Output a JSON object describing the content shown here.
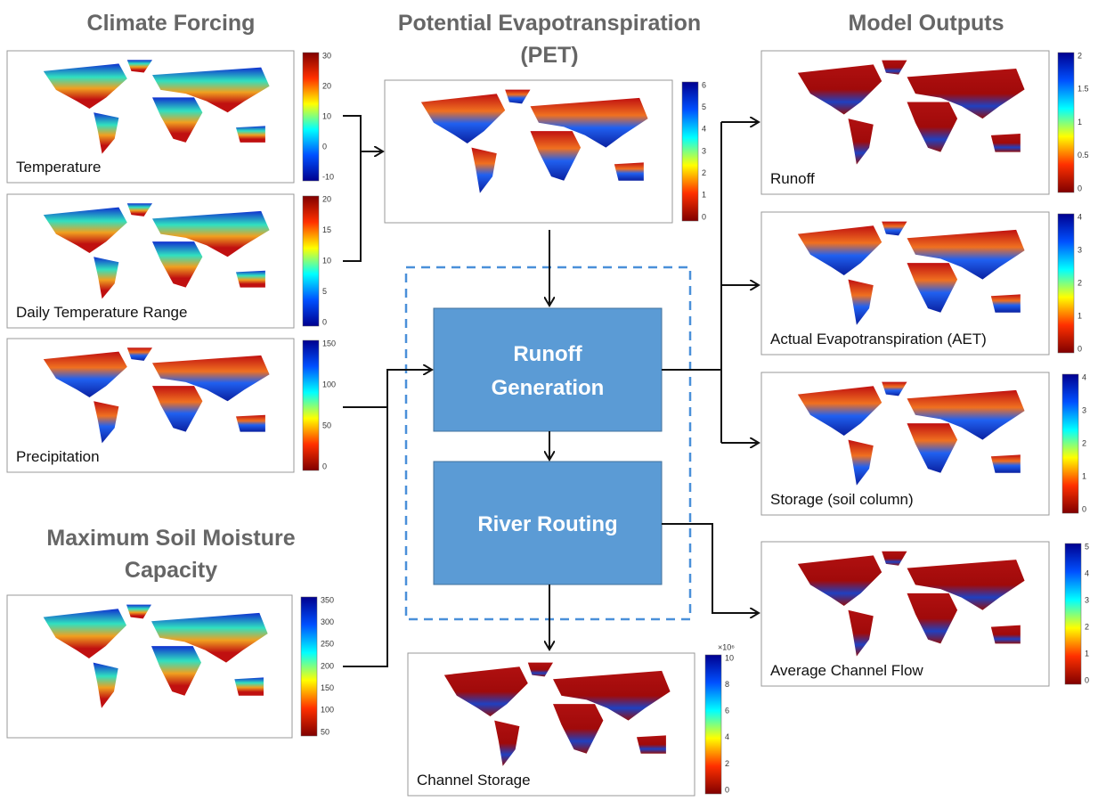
{
  "titles": {
    "climate": [
      "Climate Forcing"
    ],
    "pet": [
      "Potential Evapotranspiration",
      "(PET)"
    ],
    "outputs": [
      "Model Outputs"
    ],
    "soil": [
      "Maximum Soil Moisture",
      "Capacity"
    ]
  },
  "process": {
    "runoff": [
      "Runoff",
      "Generation"
    ],
    "routing": [
      "River Routing"
    ]
  },
  "panels": [
    {
      "label": "Temperature",
      "ticks": [
        30,
        20,
        10,
        0,
        -10
      ]
    },
    {
      "label": "Daily Temperature Range",
      "ticks": [
        20,
        15,
        10,
        5,
        0
      ]
    },
    {
      "label": "Precipitation",
      "ticks": [
        150,
        100,
        50,
        0
      ]
    },
    {
      "label": "",
      "ticks": [
        350,
        300,
        250,
        200,
        150,
        100,
        50
      ]
    },
    {
      "label": "",
      "ticks": [
        6,
        5,
        4,
        3,
        2,
        1,
        0
      ]
    },
    {
      "label": "Runoff",
      "ticks": [
        2,
        1.5,
        1,
        0.5,
        0
      ]
    },
    {
      "label": "Actual Evapotranspiration (AET)",
      "ticks": [
        4,
        3,
        2,
        1,
        0
      ]
    },
    {
      "label": "Storage (soil column)",
      "ticks": [
        4,
        3,
        2,
        1,
        0
      ]
    },
    {
      "label": "Average Channel Flow",
      "ticks": [
        5,
        4,
        3,
        2,
        1,
        0
      ]
    },
    {
      "label": "Channel Storage",
      "ticks": [
        10,
        8,
        6,
        4,
        2,
        0
      ],
      "multiplier": "×10⁶"
    }
  ]
}
